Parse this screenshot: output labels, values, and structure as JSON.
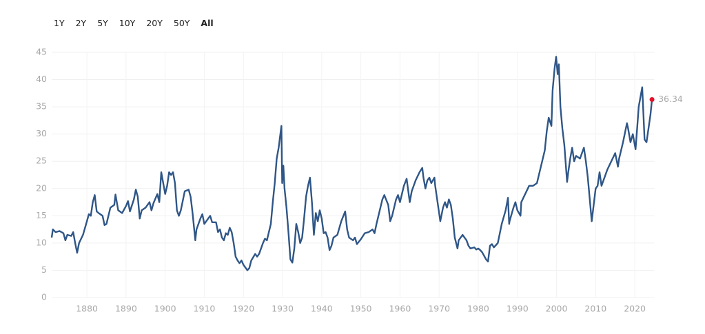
{
  "range_buttons": [
    "1Y",
    "2Y",
    "5Y",
    "10Y",
    "20Y",
    "50Y",
    "All"
  ],
  "selected_button": "All",
  "chart_data": {
    "type": "line",
    "xlim": [
      1871,
      2025
    ],
    "ylim": [
      0,
      45
    ],
    "xticks": [
      1880,
      1890,
      1900,
      1910,
      1920,
      1930,
      1940,
      1950,
      1960,
      1970,
      1980,
      1990,
      2000,
      2010,
      2020
    ],
    "yticks": [
      0,
      5,
      10,
      15,
      20,
      25,
      30,
      35,
      40,
      45
    ],
    "grid": true,
    "series": [
      {
        "color": "#2f5687",
        "marker_color": "#e4122c",
        "x": [
          1871,
          1871.3,
          1872,
          1873,
          1874,
          1874.5,
          1875,
          1876,
          1876.5,
          1877,
          1877.5,
          1878,
          1879,
          1880,
          1880.5,
          1881,
          1881.5,
          1882,
          1882.5,
          1883,
          1884,
          1884.5,
          1885,
          1886,
          1887,
          1887.3,
          1888,
          1889,
          1890,
          1890.5,
          1891,
          1892,
          1892.5,
          1893,
          1893.5,
          1894,
          1895,
          1896,
          1896.5,
          1897,
          1898,
          1898.5,
          1899,
          1899.5,
          1900,
          1900.5,
          1901,
          1901.5,
          1902,
          1902.5,
          1903,
          1903.5,
          1904,
          1905,
          1906,
          1906.5,
          1907,
          1907.7,
          1908,
          1909,
          1909.5,
          1910,
          1911,
          1911.5,
          1912,
          1913,
          1913.5,
          1914,
          1914.5,
          1915,
          1915.5,
          1916,
          1916.5,
          1917,
          1917.5,
          1918,
          1918.5,
          1919,
          1919.5,
          1920,
          1920.5,
          1921,
          1921.5,
          1922,
          1923,
          1923.5,
          1924,
          1925,
          1925.5,
          1926,
          1927,
          1927.5,
          1928,
          1928.5,
          1929,
          1929.7,
          1929.9,
          1930.2,
          1930.5,
          1931,
          1931.5,
          1932,
          1932.5,
          1933,
          1933.5,
          1934,
          1934.5,
          1935,
          1935.5,
          1936,
          1936.5,
          1937,
          1937.5,
          1938,
          1938.5,
          1939,
          1939.5,
          1940,
          1940.5,
          1941,
          1941.5,
          1942,
          1942.5,
          1943,
          1944,
          1945,
          1946,
          1946.5,
          1947,
          1948,
          1948.5,
          1949,
          1950,
          1951,
          1952,
          1953,
          1953.5,
          1954,
          1955,
          1955.5,
          1956,
          1957,
          1957.5,
          1958,
          1959,
          1959.5,
          1960,
          1961,
          1961.7,
          1962.5,
          1963,
          1964,
          1965,
          1965.7,
          1966,
          1966.5,
          1967,
          1967.5,
          1968,
          1968.8,
          1969,
          1970,
          1970.3,
          1971,
          1971.5,
          1972,
          1972.5,
          1973,
          1973.5,
          1974,
          1974.7,
          1975,
          1976,
          1977,
          1977.5,
          1978,
          1979,
          1979.5,
          1980,
          1980.5,
          1981,
          1982,
          1982.5,
          1983,
          1983.5,
          1984,
          1985,
          1986,
          1987,
          1987.6,
          1987.9,
          1988,
          1989,
          1989.5,
          1990,
          1990.8,
          1991,
          1992,
          1993,
          1994,
          1995,
          1996,
          1997,
          1997.5,
          1998,
          1998.7,
          1999,
          1999.5,
          1999.9,
          2000.3,
          2000.6,
          2001,
          2001.5,
          2002,
          2002.7,
          2003,
          2003.5,
          2004,
          2004.5,
          2005,
          2006,
          2007,
          2007.5,
          2008,
          2008.5,
          2009,
          2009.5,
          2010,
          2010.5,
          2011,
          2011.5,
          2012,
          2013,
          2014,
          2015,
          2015.7,
          2016,
          2017,
          2018,
          2018.3,
          2018.9,
          2019.5,
          2020.2,
          2020.6,
          2021,
          2021.9,
          2022.5,
          2023,
          2023.5,
          2024,
          2024.4
        ],
        "values": [
          11,
          12.5,
          12,
          12.2,
          11.8,
          10.5,
          11.5,
          11.3,
          12,
          10,
          8.2,
          10,
          11.5,
          14,
          15.3,
          15,
          17.5,
          18.8,
          15.8,
          15.5,
          15,
          13.3,
          13.5,
          16.5,
          17,
          18.9,
          16,
          15.5,
          16.8,
          17.7,
          15.8,
          18,
          19.8,
          18.5,
          14.5,
          16,
          16.5,
          17.5,
          16,
          17.3,
          19,
          17.5,
          23,
          21,
          19,
          20.5,
          23,
          22.5,
          23,
          21,
          16,
          15,
          16,
          19.5,
          19.8,
          18.5,
          15.5,
          10.5,
          12.5,
          14.5,
          15.3,
          13.5,
          14.5,
          15,
          13.8,
          13.8,
          12,
          12.5,
          11,
          10.5,
          11.8,
          11.5,
          12.8,
          12,
          10,
          7.5,
          6.8,
          6.3,
          6.8,
          6,
          5.5,
          5,
          5.4,
          6.8,
          8,
          7.5,
          8,
          10,
          10.8,
          10.5,
          13.5,
          17.5,
          21,
          25.5,
          27.5,
          31.5,
          21,
          24.2,
          20,
          16.5,
          12,
          7,
          6.4,
          9,
          13.5,
          12,
          10,
          11,
          14.5,
          18.5,
          20.5,
          22,
          17.5,
          11.5,
          15.5,
          14,
          16,
          14.5,
          11.8,
          12,
          11,
          8.7,
          9.5,
          11,
          11.5,
          14,
          15.8,
          12.5,
          11,
          10.5,
          11,
          9.8,
          10.7,
          11.8,
          12,
          12.5,
          11.8,
          13.5,
          16.5,
          18,
          18.8,
          17,
          14,
          15,
          18,
          18.8,
          17.5,
          20.5,
          21.8,
          17.5,
          19.5,
          21.5,
          23,
          23.8,
          22,
          20,
          21.5,
          22,
          21,
          22,
          20.5,
          15.5,
          14,
          16.5,
          17.5,
          16.5,
          18,
          17,
          14.5,
          11,
          9,
          10.5,
          11.5,
          10.5,
          9.5,
          9,
          9.2,
          8.8,
          9,
          8.7,
          8.3,
          7,
          6.6,
          9.5,
          9.8,
          9.2,
          10,
          13.5,
          16,
          18.3,
          13.5,
          14,
          16.5,
          17.5,
          16,
          15,
          17.5,
          19,
          20.5,
          20.5,
          21,
          24,
          27,
          30.5,
          33,
          31.5,
          38,
          42,
          44.2,
          41,
          42.8,
          35,
          31,
          28,
          21.2,
          23,
          25.5,
          27.5,
          25,
          26,
          25.5,
          27.5,
          25,
          22,
          18,
          14,
          17,
          20,
          20.5,
          23,
          20.5,
          21.5,
          23.5,
          25,
          26.5,
          24,
          25.5,
          28.5,
          32,
          31,
          28.5,
          30,
          27.2,
          31,
          35,
          38.6,
          29,
          28.5,
          31,
          33.5,
          36.34
        ]
      }
    ]
  }
}
